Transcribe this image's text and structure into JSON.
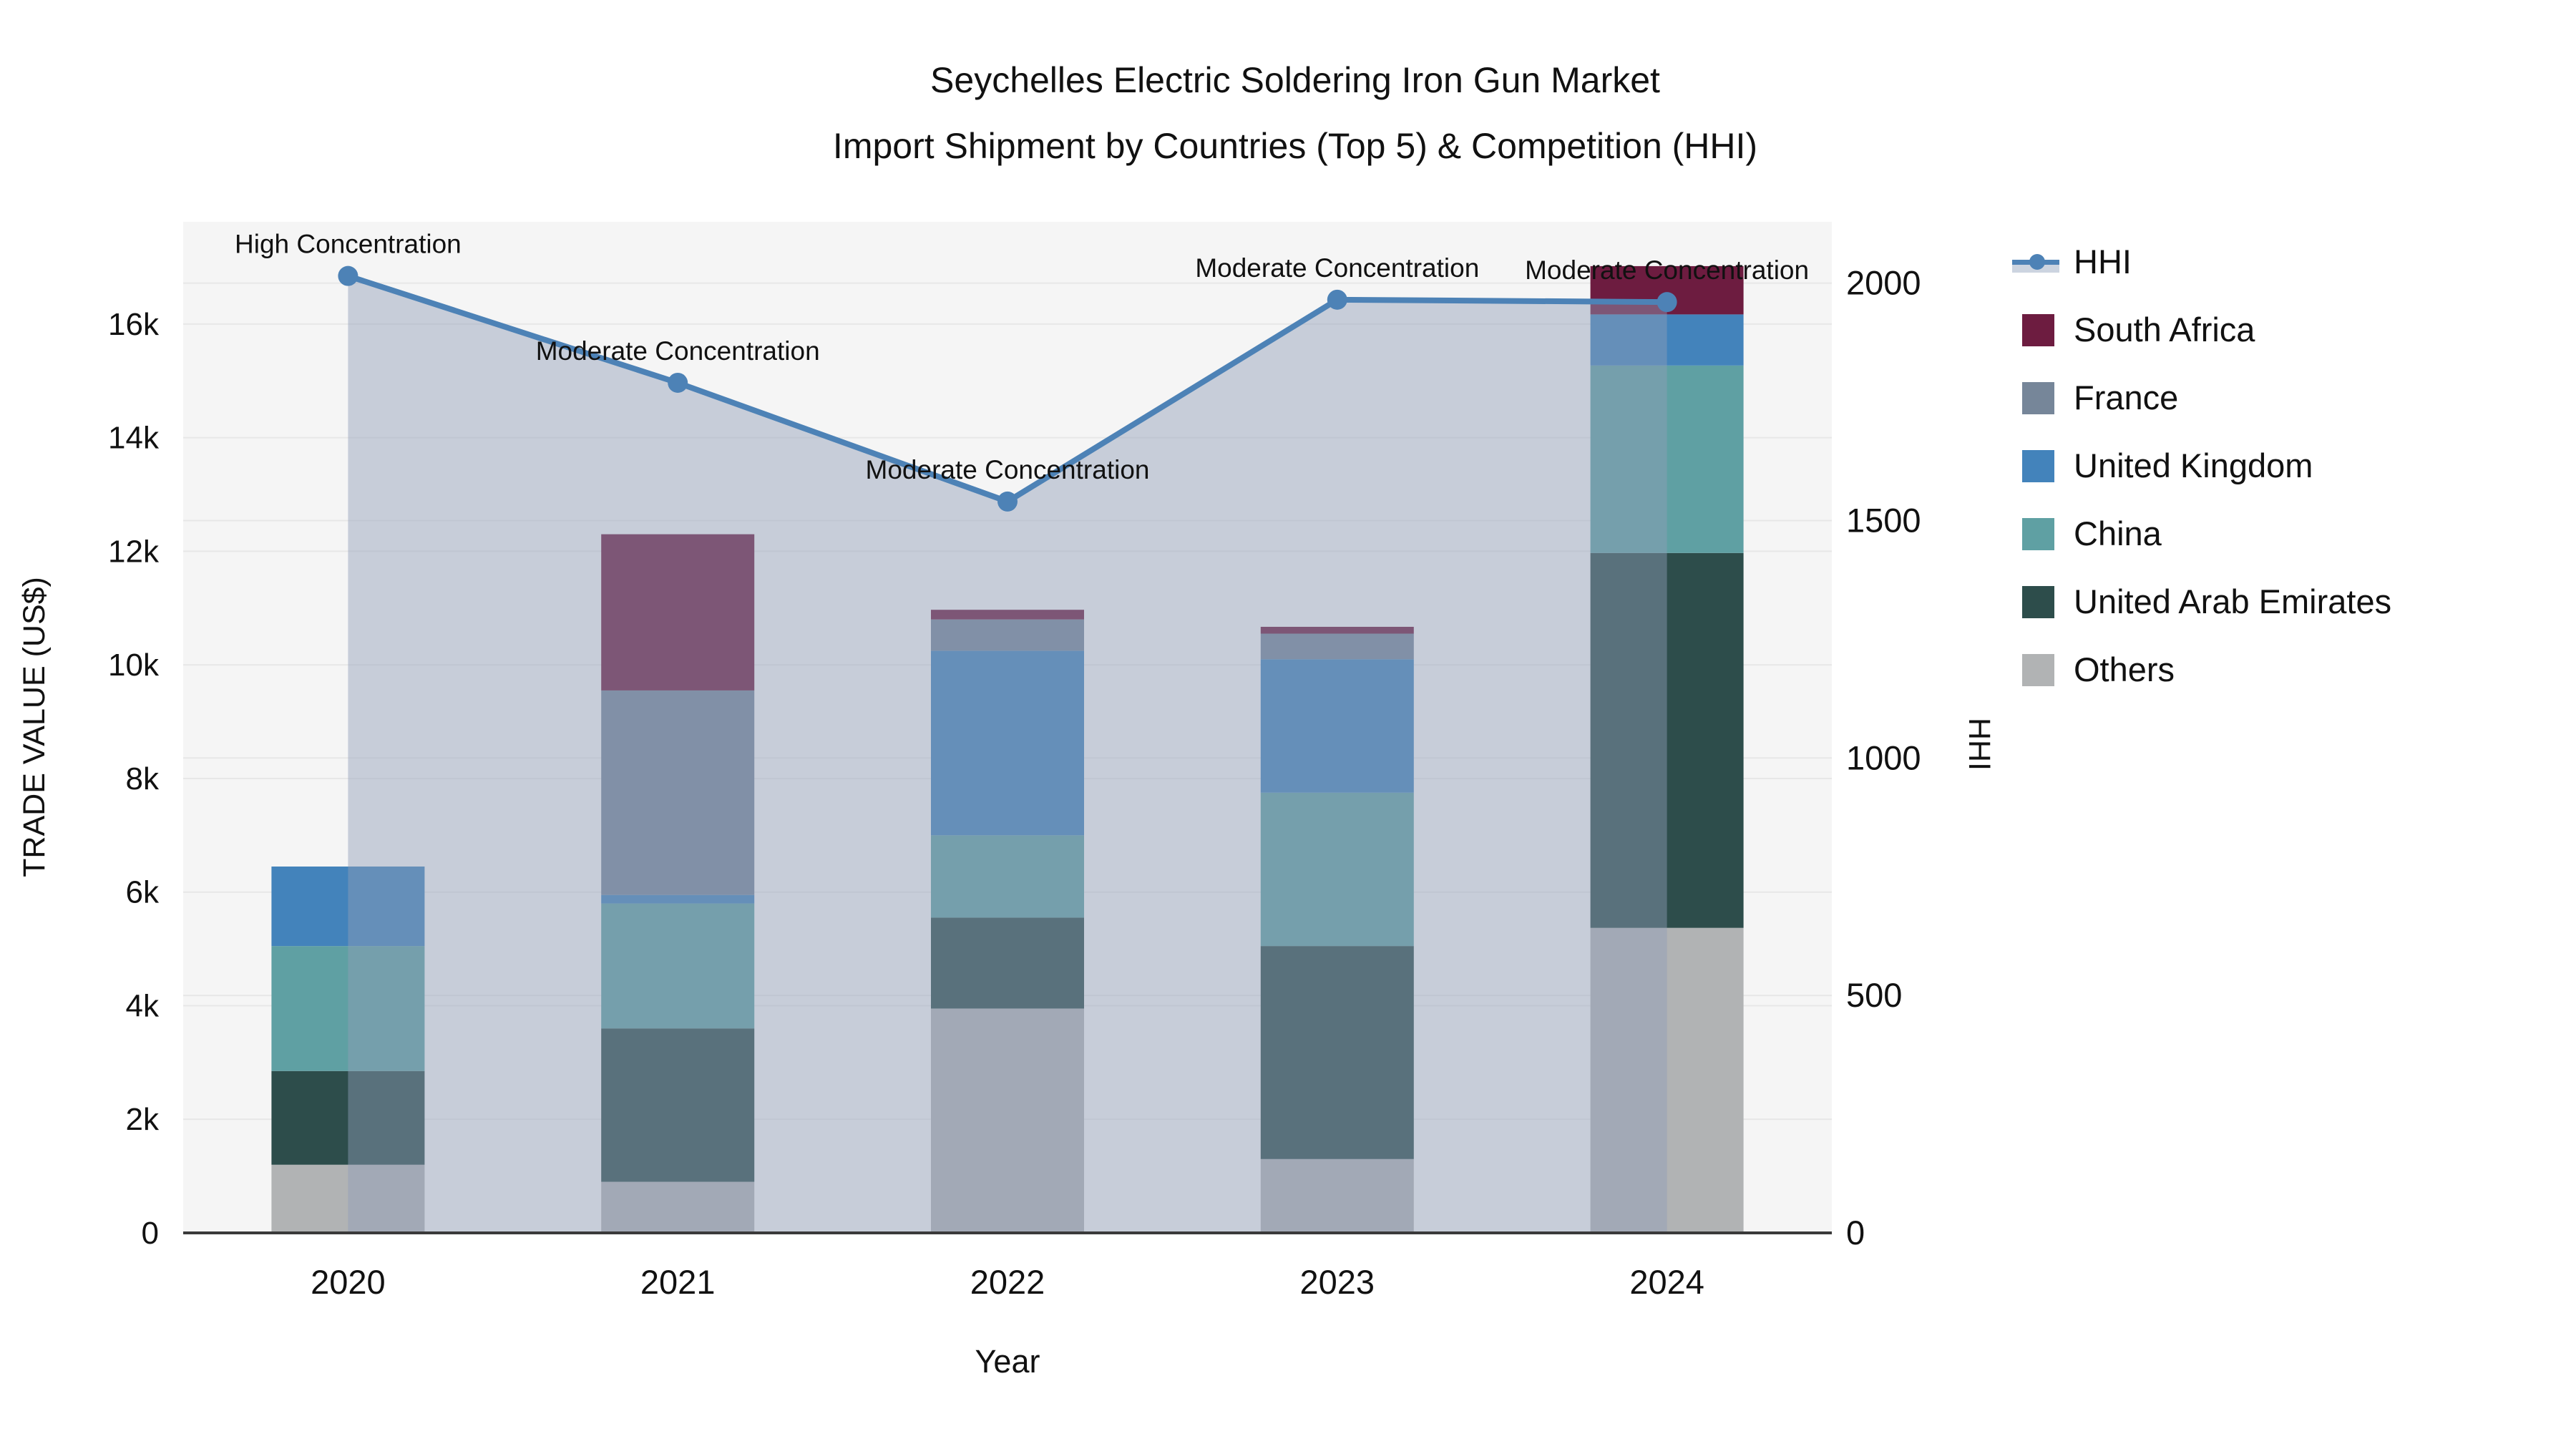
{
  "title": {
    "line1": "Seychelles Electric Soldering Iron Gun Market",
    "line2": "Import Shipment by Countries (Top 5) & Competition (HHI)"
  },
  "chart_data": {
    "type": "stacked-bar-line-combo",
    "categories": [
      "2020",
      "2021",
      "2022",
      "2023",
      "2024"
    ],
    "bar_series": [
      {
        "name": "South Africa",
        "color": "#6d1c40",
        "values": [
          0,
          2750,
          170,
          120,
          850
        ]
      },
      {
        "name": "France",
        "color": "#768699",
        "values": [
          0,
          3600,
          550,
          450,
          0
        ]
      },
      {
        "name": "United Kingdom",
        "color": "#4383bb",
        "values": [
          1400,
          150,
          3250,
          2350,
          900
        ]
      },
      {
        "name": "China",
        "color": "#5fa0a3",
        "values": [
          2200,
          2200,
          1450,
          2700,
          3300
        ]
      },
      {
        "name": "United Arab Emirates",
        "color": "#2d4d4b",
        "values": [
          1650,
          2700,
          1600,
          3750,
          6600
        ]
      },
      {
        "name": "Others",
        "color": "#b1b3b4",
        "values": [
          1200,
          900,
          3950,
          1300,
          5370
        ]
      }
    ],
    "stack_bottom_to_top": [
      "Others",
      "United Arab Emirates",
      "China",
      "United Kingdom",
      "France",
      "South Africa"
    ],
    "line_series": {
      "name": "HHI",
      "color": "#4d82b6",
      "fill": "rgba(144,158,184,0.45)",
      "values": [
        2015,
        1790,
        1540,
        1965,
        1960
      ]
    },
    "annotations": [
      {
        "category": "2020",
        "text": "High Concentration"
      },
      {
        "category": "2021",
        "text": "Moderate Concentration"
      },
      {
        "category": "2022",
        "text": "Moderate Concentration"
      },
      {
        "category": "2023",
        "text": "Moderate Concentration"
      },
      {
        "category": "2024",
        "text": "Moderate Concentration"
      }
    ],
    "y_left": {
      "title": "TRADE VALUE (US$)",
      "ticks": [
        0,
        2000,
        4000,
        6000,
        8000,
        10000,
        12000,
        14000,
        16000
      ],
      "tick_labels": [
        "0",
        "2k",
        "4k",
        "6k",
        "8k",
        "10k",
        "12k",
        "14k",
        "16k"
      ],
      "range": [
        0,
        17800
      ]
    },
    "y_right": {
      "title": "HHI",
      "ticks": [
        0,
        500,
        1000,
        1500,
        2000
      ],
      "tick_labels": [
        "0",
        "500",
        "1000",
        "1500",
        "2000"
      ],
      "range": [
        0,
        2129
      ]
    },
    "x_title": "Year",
    "grid": true,
    "legend_position": "right",
    "plot_background": "#f5f5f5",
    "grid_color": "#e7e7e7",
    "axis_line_color": "#3a3a3a"
  },
  "legend": {
    "items": [
      {
        "label": "HHI",
        "marker": "line",
        "color": "#4d82b6"
      },
      {
        "label": "South Africa",
        "marker": "square",
        "color": "#6d1c40"
      },
      {
        "label": "France",
        "marker": "square",
        "color": "#768699"
      },
      {
        "label": "United Kingdom",
        "marker": "square",
        "color": "#4383bb"
      },
      {
        "label": "China",
        "marker": "square",
        "color": "#5fa0a3"
      },
      {
        "label": "United Arab Emirates",
        "marker": "square",
        "color": "#2d4d4b"
      },
      {
        "label": "Others",
        "marker": "square",
        "color": "#b1b3b4"
      }
    ]
  }
}
